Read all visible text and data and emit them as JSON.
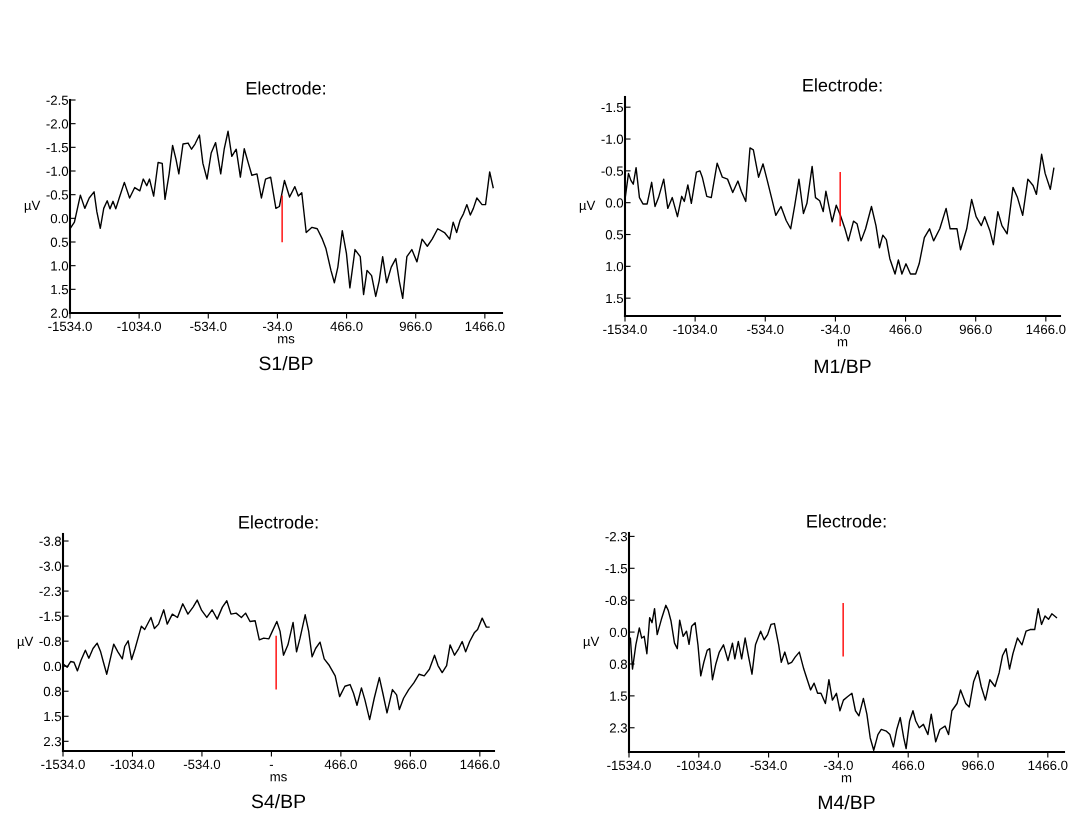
{
  "chart_data": [
    {
      "type": "line",
      "title": "Electrode:",
      "xlabel": "ms",
      "ylabel": "µV",
      "annotations": [
        "S1/BP"
      ],
      "grid": false,
      "marker": "none",
      "line_style": "solid",
      "xlim": [
        -1534,
        1590
      ],
      "ylim": [
        2.0,
        -2.5
      ],
      "xticks": [
        {
          "value": -1534,
          "label": "-1534.0"
        },
        {
          "value": -1034,
          "label": "-1034.0"
        },
        {
          "value": -534,
          "label": "-534.0"
        },
        {
          "value": -34,
          "label": "-34.0"
        },
        {
          "value": 466,
          "label": "466.0"
        },
        {
          "value": 966,
          "label": "966.0"
        },
        {
          "value": 1466,
          "label": "1466.0"
        }
      ],
      "yticks": [
        {
          "value": -2.5,
          "label": "-2.5"
        },
        {
          "value": -2.0,
          "label": "-2.0"
        },
        {
          "value": -1.5,
          "label": "-1.5"
        },
        {
          "value": -1.0,
          "label": "-1.0"
        },
        {
          "value": -0.5,
          "label": "-0.5"
        },
        {
          "value": 0,
          "label": "0.0"
        },
        {
          "value": 0.5,
          "label": "0.5"
        },
        {
          "value": 1.0,
          "label": "1.0"
        },
        {
          "value": 1.5,
          "label": "1.5"
        },
        {
          "value": 2.0,
          "label": "2.0"
        }
      ],
      "series": [
        {
          "color": "#000000",
          "x": [
            -1534,
            -1502,
            -1459,
            -1427,
            -1395,
            -1360,
            -1340,
            -1315,
            -1290,
            -1265,
            -1245,
            -1223,
            -1203,
            -1178,
            -1141,
            -1103,
            -1066,
            -1029,
            -1004,
            -979,
            -959,
            -929,
            -897,
            -867,
            -847,
            -817,
            -792,
            -767,
            -747,
            -717,
            -680,
            -655,
            -630,
            -598,
            -573,
            -543,
            -513,
            -481,
            -444,
            -419,
            -391,
            -364,
            -332,
            -302,
            -274,
            -244,
            -219,
            -182,
            -150,
            -120,
            -83,
            -45,
            -20,
            17,
            54,
            92,
            117,
            142,
            174,
            216,
            254,
            291,
            316,
            353,
            378,
            403,
            435,
            465,
            490,
            527,
            565,
            589,
            614,
            647,
            677,
            702,
            727,
            756,
            789,
            822,
            847,
            872,
            902,
            938,
            975,
            1012,
            1050,
            1085,
            1125,
            1174,
            1212,
            1237,
            1262,
            1287,
            1312,
            1336,
            1361,
            1383,
            1408,
            1446,
            1471,
            1501,
            1526
          ],
          "values": [
            0.22,
            0.08,
            -0.49,
            -0.21,
            -0.43,
            -0.56,
            -0.14,
            0.21,
            -0.21,
            -0.37,
            -0.2,
            -0.36,
            -0.2,
            -0.43,
            -0.76,
            -0.43,
            -0.65,
            -0.58,
            -0.83,
            -0.69,
            -0.83,
            -0.47,
            -1.18,
            -1.16,
            -0.4,
            -0.94,
            -1.54,
            -1.24,
            -0.94,
            -1.57,
            -1.59,
            -1.46,
            -1.57,
            -1.76,
            -1.16,
            -0.83,
            -1.38,
            -1.6,
            -0.94,
            -1.46,
            -1.84,
            -1.31,
            -1.46,
            -0.87,
            -1.47,
            -1.16,
            -0.91,
            -0.94,
            -0.43,
            -0.83,
            -0.87,
            -0.21,
            -0.25,
            -0.8,
            -0.45,
            -0.67,
            -0.47,
            -0.54,
            0.3,
            0.19,
            0.22,
            0.44,
            0.63,
            1.1,
            1.36,
            1.03,
            0.26,
            0.74,
            1.47,
            0.66,
            0.81,
            1.61,
            1.1,
            1.21,
            1.65,
            1.32,
            0.81,
            1.36,
            1.03,
            0.85,
            1.32,
            1.69,
            0.81,
            0.66,
            0.92,
            0.44,
            0.59,
            0.44,
            0.22,
            0.3,
            0.44,
            0.08,
            0.3,
            0.04,
            -0.1,
            -0.29,
            -0.07,
            -0.21,
            -0.43,
            -0.29,
            -0.29,
            -0.98,
            -0.65
          ]
        },
        {
          "color": "#ff0000",
          "x": [
            0,
            0
          ],
          "values": [
            -0.47,
            0.49
          ]
        }
      ]
    },
    {
      "type": "line",
      "title": "Electrode:",
      "xlabel": "m",
      "ylabel": "µV",
      "annotations": [
        "M1/BP"
      ],
      "grid": false,
      "marker": "none",
      "line_style": "solid",
      "xlim": [
        -1534,
        1567
      ],
      "ylim": [
        1.78,
        -1.66
      ],
      "xticks": [
        {
          "value": -1534,
          "label": "-1534.0"
        },
        {
          "value": -1034,
          "label": "-1034.0"
        },
        {
          "value": -534,
          "label": "-534.0"
        },
        {
          "value": -34,
          "label": "-34.0"
        },
        {
          "value": 466,
          "label": "466.0"
        },
        {
          "value": 966,
          "label": "966.0"
        },
        {
          "value": 1466,
          "label": "1466.0"
        }
      ],
      "yticks": [
        {
          "value": -1.5,
          "label": "-1.5"
        },
        {
          "value": -1.0,
          "label": "-1.0"
        },
        {
          "value": -0.5,
          "label": "-0.5"
        },
        {
          "value": 0,
          "label": "0.0"
        },
        {
          "value": 0.5,
          "label": "0.5"
        },
        {
          "value": 1.0,
          "label": "1.0"
        },
        {
          "value": 1.5,
          "label": "1.5"
        }
      ],
      "series": [
        {
          "color": "#000000",
          "x": [
            -1534,
            -1509,
            -1492,
            -1475,
            -1455,
            -1431,
            -1406,
            -1376,
            -1344,
            -1320,
            -1295,
            -1258,
            -1229,
            -1197,
            -1160,
            -1130,
            -1111,
            -1086,
            -1061,
            -1025,
            -1000,
            -983,
            -951,
            -919,
            -877,
            -840,
            -803,
            -766,
            -729,
            -705,
            -673,
            -643,
            -619,
            -582,
            -550,
            -520,
            -483,
            -459,
            -422,
            -385,
            -353,
            -323,
            -294,
            -262,
            -237,
            -200,
            -176,
            -146,
            -121,
            -102,
            -77,
            -57,
            -28,
            2,
            34,
            58,
            95,
            120,
            149,
            181,
            223,
            255,
            280,
            304,
            329,
            354,
            391,
            415,
            440,
            469,
            501,
            538,
            563,
            600,
            637,
            666,
            710,
            755,
            784,
            833,
            858,
            902,
            937,
            969,
            1006,
            1030,
            1067,
            1092,
            1124,
            1153,
            1190,
            1232,
            1264,
            1301,
            1338,
            1375,
            1399,
            1436,
            1461,
            1498,
            1523
          ],
          "values": [
            -0.05,
            -0.46,
            -0.35,
            -0.29,
            -0.55,
            -0.08,
            0.02,
            0.02,
            -0.32,
            0.06,
            -0.08,
            -0.37,
            0.09,
            -0.08,
            0.22,
            -0.1,
            -0.02,
            -0.28,
            0.01,
            -0.48,
            -0.5,
            -0.4,
            -0.1,
            -0.08,
            -0.62,
            -0.4,
            -0.37,
            -0.16,
            -0.34,
            -0.18,
            -0.02,
            -0.86,
            -0.83,
            -0.4,
            -0.61,
            -0.35,
            -0.02,
            0.2,
            0.06,
            0.28,
            0.41,
            0.03,
            -0.37,
            0.17,
            0.01,
            -0.57,
            -0.08,
            -0.03,
            0.14,
            -0.18,
            0.09,
            0.3,
            0.04,
            0.2,
            0.41,
            0.6,
            0.29,
            0.33,
            0.6,
            0.41,
            0.06,
            0.36,
            0.71,
            0.51,
            0.58,
            0.88,
            1.12,
            0.9,
            1.12,
            0.96,
            1.12,
            1.12,
            0.96,
            0.55,
            0.41,
            0.6,
            0.41,
            0.09,
            0.41,
            0.41,
            0.74,
            0.41,
            -0.05,
            0.22,
            0.36,
            0.22,
            0.44,
            0.66,
            0.14,
            0.36,
            0.49,
            -0.24,
            -0.08,
            0.2,
            -0.37,
            -0.27,
            -0.13,
            -0.76,
            -0.46,
            -0.21,
            -0.54
          ]
        },
        {
          "color": "#ff0000",
          "x": [
            0,
            0
          ],
          "values": [
            -0.47,
            0.36
          ]
        }
      ]
    },
    {
      "type": "line",
      "title": "Electrode:",
      "xlabel": "ms",
      "ylabel": "µV",
      "annotations": [
        "S4/BP"
      ],
      "grid": false,
      "marker": "none",
      "line_style": "solid",
      "xlim": [
        -1534,
        1568
      ],
      "ylim": [
        2.54,
        -3.96
      ],
      "xticks": [
        {
          "value": -1534,
          "label": "-1534.0"
        },
        {
          "value": -1034,
          "label": "-1034.0"
        },
        {
          "value": -534,
          "label": "-534.0"
        },
        {
          "value": -34,
          "label": "-"
        },
        {
          "value": 466,
          "label": "466.0"
        },
        {
          "value": 966,
          "label": "966.0"
        },
        {
          "value": 1466,
          "label": "1466.0"
        }
      ],
      "yticks": [
        {
          "value": -3.75,
          "label": "-3.8"
        },
        {
          "value": -3.0,
          "label": "-3.0"
        },
        {
          "value": -2.25,
          "label": "-2.3"
        },
        {
          "value": -1.5,
          "label": "-1.5"
        },
        {
          "value": -0.75,
          "label": "-0.8"
        },
        {
          "value": 0,
          "label": "0.0"
        },
        {
          "value": 0.75,
          "label": "0.8"
        },
        {
          "value": 1.5,
          "label": "1.5"
        },
        {
          "value": 2.25,
          "label": "2.3"
        }
      ],
      "series": [
        {
          "color": "#000000",
          "x": [
            -1534,
            -1504,
            -1479,
            -1455,
            -1430,
            -1405,
            -1373,
            -1348,
            -1318,
            -1288,
            -1263,
            -1243,
            -1219,
            -1199,
            -1169,
            -1139,
            -1107,
            -1090,
            -1065,
            -1040,
            -1015,
            -970,
            -946,
            -901,
            -876,
            -846,
            -809,
            -784,
            -747,
            -710,
            -672,
            -635,
            -598,
            -568,
            -536,
            -499,
            -461,
            -424,
            -387,
            -355,
            -325,
            -288,
            -250,
            -220,
            -188,
            -151,
            -121,
            -89,
            -52,
            -27,
            5,
            28,
            53,
            85,
            122,
            147,
            172,
            209,
            234,
            259,
            284,
            316,
            346,
            383,
            425,
            457,
            495,
            532,
            557,
            582,
            614,
            639,
            673,
            706,
            743,
            768,
            798,
            837,
            867,
            887,
            917,
            954,
            991,
            1029,
            1066,
            1103,
            1140,
            1165,
            1195,
            1227,
            1252,
            1284,
            1314,
            1339,
            1364,
            1393,
            1426,
            1450,
            1483,
            1513,
            1532
          ],
          "values": [
            -0.07,
            0.03,
            -0.14,
            -0.12,
            0.14,
            -0.17,
            -0.48,
            -0.24,
            -0.53,
            -0.69,
            -0.43,
            -0.12,
            0.24,
            -0.12,
            -0.66,
            -0.43,
            -0.22,
            -0.59,
            -0.76,
            -0.2,
            -0.53,
            -1.2,
            -1.1,
            -1.46,
            -1.13,
            -1.26,
            -1.69,
            -1.26,
            -1.56,
            -1.46,
            -1.87,
            -1.56,
            -1.77,
            -1.98,
            -1.67,
            -1.46,
            -1.69,
            -1.41,
            -1.77,
            -1.96,
            -1.56,
            -1.59,
            -1.46,
            -1.59,
            -1.34,
            -1.36,
            -0.79,
            -0.84,
            -0.82,
            -1.05,
            -1.34,
            -1.05,
            -0.33,
            -0.64,
            -1.31,
            -0.43,
            -0.84,
            -1.54,
            -1.05,
            -0.28,
            -0.53,
            -0.72,
            -0.22,
            -0.02,
            0.29,
            0.91,
            0.6,
            0.55,
            0.81,
            1.17,
            0.65,
            1.01,
            1.6,
            0.96,
            0.34,
            0.81,
            1.4,
            0.7,
            0.86,
            1.3,
            0.96,
            0.7,
            0.5,
            0.24,
            0.29,
            0.09,
            -0.33,
            -0.02,
            0.19,
            -0.02,
            -0.64,
            -0.33,
            -0.53,
            -0.74,
            -0.43,
            -0.74,
            -1.0,
            -1.1,
            -1.44,
            -1.17,
            -1.17
          ]
        },
        {
          "color": "#ff0000",
          "x": [
            0,
            0
          ],
          "values": [
            -0.89,
            0.68
          ]
        }
      ]
    },
    {
      "type": "line",
      "title": "Electrode:",
      "xlabel": "m",
      "ylabel": "µV",
      "annotations": [
        "M4/BP"
      ],
      "grid": false,
      "marker": "none",
      "line_style": "solid",
      "xlim": [
        -1534,
        1582
      ],
      "ylim": [
        2.82,
        -2.33
      ],
      "xticks": [
        {
          "value": -1534,
          "label": "-1534.0"
        },
        {
          "value": -1034,
          "label": "-1034.0"
        },
        {
          "value": -534,
          "label": "-534.0"
        },
        {
          "value": -34,
          "label": "-34.0"
        },
        {
          "value": 466,
          "label": "466.0"
        },
        {
          "value": 966,
          "label": "966.0"
        },
        {
          "value": 1466,
          "label": "1466.0"
        }
      ],
      "yticks": [
        {
          "value": -2.25,
          "label": "-2.3"
        },
        {
          "value": -1.5,
          "label": "-1.5"
        },
        {
          "value": -0.75,
          "label": "-0.8"
        },
        {
          "value": 0,
          "label": "0.0"
        },
        {
          "value": 0.75,
          "label": "0.8"
        },
        {
          "value": 1.5,
          "label": "1.5"
        },
        {
          "value": 2.25,
          "label": "2.3"
        }
      ],
      "series": [
        {
          "color": "#000000",
          "x": [
            -1534,
            -1524,
            -1509,
            -1485,
            -1460,
            -1443,
            -1425,
            -1406,
            -1386,
            -1369,
            -1351,
            -1332,
            -1302,
            -1270,
            -1253,
            -1233,
            -1208,
            -1188,
            -1171,
            -1146,
            -1122,
            -1104,
            -1085,
            -1060,
            -1040,
            -1020,
            -998,
            -974,
            -956,
            -936,
            -912,
            -887,
            -857,
            -825,
            -793,
            -776,
            -751,
            -727,
            -702,
            -677,
            -653,
            -628,
            -591,
            -566,
            -541,
            -517,
            -492,
            -462,
            -443,
            -418,
            -393,
            -369,
            -344,
            -314,
            -282,
            -257,
            -233,
            -208,
            -183,
            -159,
            -127,
            -102,
            -77,
            -48,
            -23,
            2,
            31,
            63,
            88,
            113,
            145,
            170,
            194,
            219,
            249,
            273,
            310,
            335,
            360,
            384,
            409,
            434,
            451,
            476,
            500,
            520,
            545,
            575,
            607,
            631,
            663,
            693,
            730,
            755,
            779,
            816,
            841,
            878,
            903,
            935,
            965,
            989,
            1019,
            1051,
            1088,
            1118,
            1142,
            1167,
            1192,
            1216,
            1249,
            1281,
            1310,
            1340,
            1372,
            1397,
            1421,
            1446,
            1471,
            1495,
            1528
          ],
          "values": [
            0.22,
            0.14,
            0.87,
            0.3,
            -0.1,
            0.14,
            0.1,
            0.51,
            -0.34,
            -0.22,
            -0.55,
            0.06,
            -0.3,
            -0.63,
            -0.51,
            -0.26,
            0.26,
            0.39,
            -0.28,
            0.1,
            -0.02,
            0.29,
            -0.14,
            -0.22,
            0.3,
            1.03,
            0.71,
            0.43,
            0.39,
            1.12,
            0.75,
            0.47,
            0.3,
            0.67,
            0.26,
            0.63,
            0.22,
            0.63,
            0.14,
            0.59,
            0.99,
            0.3,
            -0.02,
            0.18,
            0.06,
            -0.18,
            -0.2,
            0.3,
            0.71,
            0.47,
            0.75,
            0.71,
            0.59,
            0.47,
            0.87,
            1.12,
            1.36,
            1.2,
            1.44,
            1.44,
            1.68,
            1.12,
            1.6,
            1.44,
            1.85,
            1.6,
            1.52,
            1.44,
            1.85,
            1.97,
            1.56,
            1.93,
            2.49,
            2.78,
            2.41,
            2.29,
            2.33,
            2.41,
            2.7,
            2.29,
            2.01,
            2.49,
            2.74,
            2.09,
            1.85,
            2.09,
            2.25,
            2.17,
            2.41,
            1.93,
            2.58,
            2.29,
            2.21,
            2.41,
            1.85,
            1.68,
            1.36,
            1.68,
            1.76,
            1.16,
            0.91,
            1.28,
            1.6,
            1.12,
            1.28,
            0.95,
            0.55,
            0.39,
            0.87,
            0.51,
            0.14,
            0.3,
            -0.02,
            -0.06,
            -0.06,
            -0.55,
            -0.18,
            -0.38,
            -0.3,
            -0.43,
            -0.34
          ]
        },
        {
          "color": "#ff0000",
          "x": [
            0,
            0
          ],
          "values": [
            -0.67,
            0.56
          ]
        }
      ]
    }
  ]
}
